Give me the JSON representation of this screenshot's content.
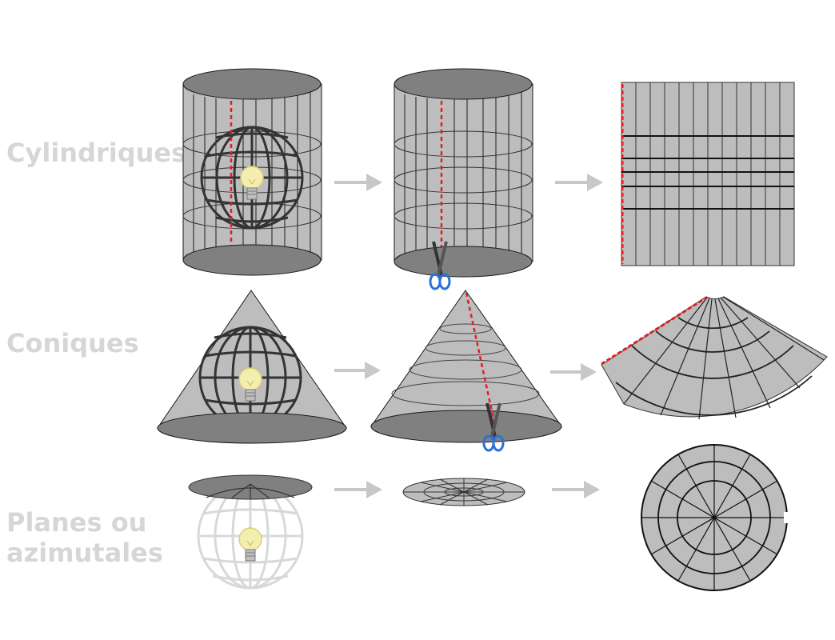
{
  "rows": [
    {
      "id": "cylindrical",
      "label": "Cylindriques"
    },
    {
      "id": "conic",
      "label": "Coniques"
    },
    {
      "id": "planar",
      "label": "Planes ou\nazimutales"
    }
  ],
  "colors": {
    "surface_fill": "#bdbdbd",
    "surface_dark": "#8a8a8a",
    "ellipse_dark": "#808080",
    "line": "#1a1a1a",
    "cut_line": "#e02020",
    "arrow": "#c8c8c8",
    "label": "#d6d6d6",
    "bulb": "#f3eeb0",
    "scissor_handle": "#2d6fd6"
  },
  "icons": [
    "light-bulb-icon",
    "scissors-icon",
    "arrow-right-icon",
    "globe-icon"
  ]
}
